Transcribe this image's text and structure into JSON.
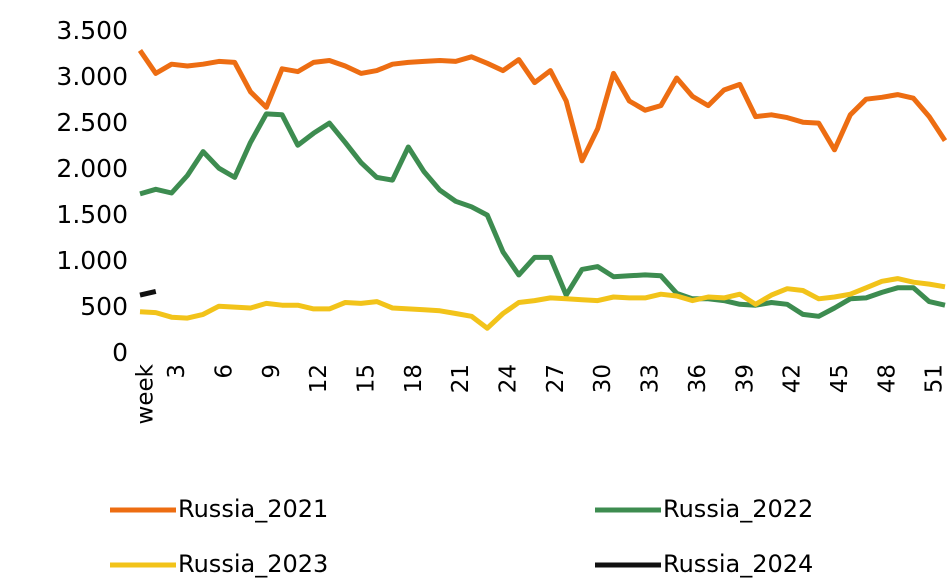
{
  "chart_data": {
    "type": "line",
    "categories": [
      "week",
      null,
      "3",
      null,
      null,
      "6",
      null,
      null,
      "9",
      null,
      null,
      "12",
      null,
      null,
      "15",
      null,
      null,
      "18",
      null,
      null,
      "21",
      null,
      null,
      "24",
      null,
      null,
      "27",
      null,
      null,
      "30",
      null,
      null,
      "33",
      null,
      null,
      "36",
      null,
      null,
      "39",
      null,
      null,
      "42",
      null,
      null,
      "45",
      null,
      null,
      "48",
      null,
      null,
      "51",
      null
    ],
    "series": [
      {
        "name": "Russia_2021",
        "color": "#ed6d12",
        "values": [
          3300,
          3050,
          3150,
          3130,
          3150,
          3180,
          3170,
          2850,
          2680,
          3100,
          3070,
          3170,
          3190,
          3130,
          3050,
          3080,
          3150,
          3170,
          3180,
          3190,
          3180,
          3230,
          3160,
          3080,
          3200,
          2950,
          3080,
          2750,
          2100,
          2450,
          3050,
          2750,
          2650,
          2700,
          3000,
          2800,
          2700,
          2870,
          2930,
          2580,
          2600,
          2570,
          2520,
          2510,
          2220,
          2600,
          2770,
          2790,
          2820,
          2780,
          2580,
          2320
        ]
      },
      {
        "name": "Russia_2022",
        "color": "#3d8c50",
        "values": [
          1740,
          1790,
          1750,
          1940,
          2200,
          2020,
          1920,
          2300,
          2610,
          2600,
          2270,
          2400,
          2510,
          2300,
          2080,
          1920,
          1890,
          2250,
          1980,
          1780,
          1660,
          1600,
          1510,
          1110,
          860,
          1050,
          1050,
          640,
          920,
          950,
          840,
          850,
          860,
          850,
          660,
          600,
          600,
          580,
          540,
          530,
          560,
          540,
          430,
          410,
          500,
          600,
          610,
          670,
          720,
          720,
          570,
          530
        ]
      },
      {
        "name": "Russia_2023",
        "color": "#f2c31a",
        "values": [
          460,
          450,
          400,
          390,
          430,
          520,
          510,
          500,
          550,
          530,
          530,
          490,
          490,
          560,
          550,
          570,
          500,
          490,
          480,
          470,
          440,
          410,
          280,
          440,
          560,
          580,
          610,
          600,
          590,
          580,
          620,
          610,
          610,
          650,
          630,
          580,
          620,
          610,
          650,
          540,
          640,
          710,
          690,
          600,
          620,
          650,
          720,
          790,
          820,
          780,
          760,
          730
        ]
      },
      {
        "name": "Russia_2024",
        "color": "#111111",
        "values": [
          640,
          680,
          null,
          null,
          null,
          null,
          null,
          null,
          null,
          null,
          null,
          null,
          null,
          null,
          null,
          null,
          null,
          null,
          null,
          null,
          null,
          null,
          null,
          null,
          null,
          null,
          null,
          null,
          null,
          null,
          null,
          null,
          null,
          null,
          null,
          null,
          null,
          null,
          null,
          null,
          null,
          null,
          null,
          null,
          null,
          null,
          null,
          null,
          null,
          null,
          null,
          null
        ]
      }
    ],
    "ylim": [
      0,
      3500
    ],
    "yticks": [
      0,
      500,
      {
        "value": 1000,
        "label": "1.000"
      },
      {
        "value": 1500,
        "label": "1.500"
      },
      {
        "value": 2000,
        "label": "2.000"
      },
      {
        "value": 2500,
        "label": "2.500"
      },
      {
        "value": 3000,
        "label": "3.000"
      },
      {
        "value": 3500,
        "label": "3.500"
      }
    ],
    "grid": false
  }
}
